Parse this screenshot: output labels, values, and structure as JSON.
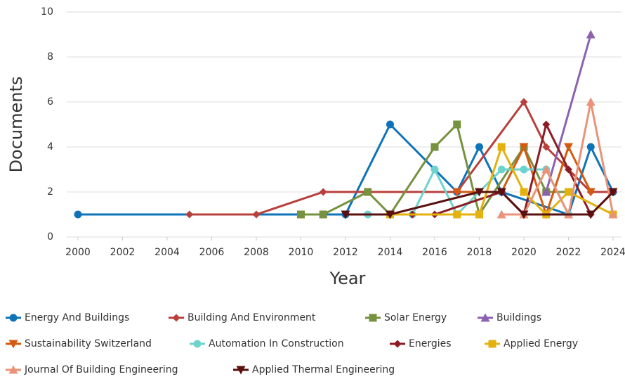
{
  "chart_data": {
    "type": "line",
    "xlabel": "Year",
    "ylabel": "Documents",
    "xlim": [
      2000,
      2024
    ],
    "ylim": [
      0,
      10
    ],
    "xticks": [
      2000,
      2002,
      2004,
      2006,
      2008,
      2010,
      2012,
      2014,
      2016,
      2018,
      2020,
      2022,
      2024
    ],
    "yticks": [
      0,
      2,
      4,
      6,
      8,
      10
    ],
    "grid": true,
    "series": [
      {
        "name": "Energy And Buildings",
        "color": "#0e73b8",
        "marker": "circle",
        "x": [
          2000,
          2012,
          2014,
          2017,
          2018,
          2019,
          2022,
          2023,
          2024
        ],
        "values": [
          1,
          1,
          5,
          2,
          4,
          2,
          1,
          4,
          2
        ]
      },
      {
        "name": "Building And Environment",
        "color": "#b8403c",
        "marker": "diamond",
        "x": [
          2005,
          2008,
          2011,
          2017,
          2020,
          2021,
          2023,
          2024
        ],
        "values": [
          1,
          1,
          2,
          2,
          6,
          4,
          2,
          2
        ]
      },
      {
        "name": "Solar Energy",
        "color": "#76913f",
        "marker": "square",
        "x": [
          2010,
          2011,
          2013,
          2014,
          2016,
          2017,
          2018,
          2020,
          2021,
          2022
        ],
        "values": [
          1,
          1,
          2,
          1,
          4,
          5,
          1,
          4,
          2,
          2
        ]
      },
      {
        "name": "Buildings",
        "color": "#8c62b0",
        "marker": "triangle-up",
        "x": [
          2021,
          2023
        ],
        "values": [
          2,
          9
        ]
      },
      {
        "name": "Sustainability Switzerland",
        "color": "#d45a12",
        "marker": "triangle-down",
        "x": [
          2017,
          2019,
          2020,
          2021,
          2022,
          2023
        ],
        "values": [
          2,
          2,
          4,
          1,
          4,
          2
        ]
      },
      {
        "name": "Automation In Construction",
        "color": "#6dd3cf",
        "marker": "circle",
        "x": [
          2013,
          2015,
          2016,
          2017,
          2019,
          2020,
          2021,
          2022
        ],
        "values": [
          1,
          1,
          3,
          1,
          3,
          3,
          3,
          1
        ]
      },
      {
        "name": "Energies",
        "color": "#8c1c24",
        "marker": "diamond",
        "x": [
          2015,
          2016,
          2019,
          2020,
          2021,
          2022,
          2023,
          2024
        ],
        "values": [
          1,
          1,
          2,
          1,
          5,
          3,
          1,
          2
        ]
      },
      {
        "name": "Applied Energy",
        "color": "#e3b20f",
        "marker": "square",
        "x": [
          2014,
          2017,
          2018,
          2019,
          2020,
          2021,
          2022,
          2024
        ],
        "values": [
          1,
          1,
          1,
          4,
          2,
          1,
          2,
          1
        ]
      },
      {
        "name": "Journal Of Building Engineering",
        "color": "#e8937a",
        "marker": "triangle-up",
        "x": [
          2019,
          2020,
          2021,
          2022,
          2023,
          2024
        ],
        "values": [
          1,
          1,
          3,
          1,
          6,
          1
        ]
      },
      {
        "name": "Applied Thermal Engineering",
        "color": "#5a1010",
        "marker": "triangle-down",
        "x": [
          2012,
          2014,
          2018,
          2019,
          2020,
          2023,
          2024
        ],
        "values": [
          1,
          1,
          2,
          2,
          1,
          1,
          2
        ]
      }
    ]
  }
}
